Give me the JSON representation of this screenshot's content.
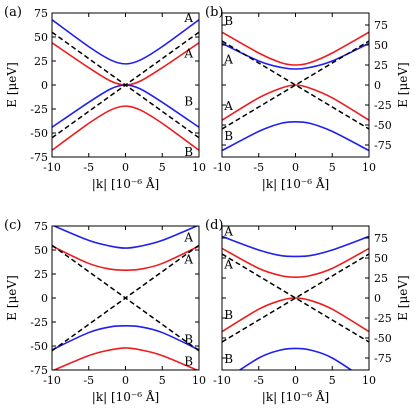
{
  "panel_labels": [
    "(a)",
    "(b)",
    "(c)",
    "(d)"
  ],
  "axis_labels": {
    "x": "|k| [10⁻⁶ Å]",
    "y": "E [μeV]"
  },
  "colors": {
    "blue": "#1f1ff0",
    "red": "#ee1c1c",
    "dashed": "#000000",
    "frame": "#000000"
  },
  "chart_data": [
    {
      "panel": "(a)",
      "type": "line",
      "xlim": [
        -10,
        10
      ],
      "ylim": [
        -75,
        75
      ],
      "xticks": [
        -10,
        -5,
        0,
        5,
        10
      ],
      "yticks": [
        -75,
        -50,
        -25,
        0,
        25,
        50,
        75
      ],
      "ytick_side": "left",
      "xlabel": "|k| [10⁻⁶ Å]",
      "ylabel": "E [μeV]",
      "series": [
        {
          "color": "blue",
          "style": "solid",
          "points": [
            [
              -10,
              68
            ],
            [
              -5,
              40
            ],
            [
              -2,
              26
            ],
            [
              0,
              22
            ],
            [
              2,
              26
            ],
            [
              5,
              40
            ],
            [
              10,
              68
            ]
          ]
        },
        {
          "color": "red",
          "style": "solid",
          "points": [
            [
              -10,
              44
            ],
            [
              -5,
              18
            ],
            [
              -2,
              4
            ],
            [
              0,
              0
            ],
            [
              2,
              4
            ],
            [
              5,
              18
            ],
            [
              10,
              44
            ]
          ]
        },
        {
          "color": "blue",
          "style": "solid",
          "points": [
            [
              -10,
              -44
            ],
            [
              -5,
              -18
            ],
            [
              -2,
              -4
            ],
            [
              0,
              0
            ],
            [
              2,
              -4
            ],
            [
              5,
              -18
            ],
            [
              10,
              -44
            ]
          ]
        },
        {
          "color": "red",
          "style": "solid",
          "points": [
            [
              -10,
              -68
            ],
            [
              -5,
              -40
            ],
            [
              -2,
              -26
            ],
            [
              0,
              -22
            ],
            [
              2,
              -26
            ],
            [
              5,
              -40
            ],
            [
              10,
              -68
            ]
          ]
        },
        {
          "color": "dashed",
          "style": "dashed",
          "points": [
            [
              -10,
              55
            ],
            [
              10,
              -55
            ]
          ]
        },
        {
          "color": "dashed",
          "style": "dashed",
          "points": [
            [
              -10,
              -55
            ],
            [
              10,
              55
            ]
          ]
        }
      ],
      "labels": [
        {
          "text": "A",
          "x": 8.6,
          "y": 70
        },
        {
          "text": "A",
          "x": 8.6,
          "y": 33
        },
        {
          "text": "B",
          "x": 8.6,
          "y": -17
        },
        {
          "text": "B",
          "x": 8.6,
          "y": -70
        }
      ]
    },
    {
      "panel": "(b)",
      "type": "line",
      "xlim": [
        -10,
        10
      ],
      "ylim": [
        -90,
        90
      ],
      "xticks": [
        -10,
        -5,
        0,
        5,
        10
      ],
      "yticks": [
        -75,
        -50,
        -25,
        0,
        25,
        50,
        75
      ],
      "ytick_side": "right",
      "xlabel": "|k| [10⁻⁶ Å]",
      "ylabel": "E [μeV]",
      "series": [
        {
          "color": "red",
          "style": "solid",
          "points": [
            [
              -10,
              66
            ],
            [
              -5,
              40
            ],
            [
              -2,
              28
            ],
            [
              0,
              25
            ],
            [
              2,
              28
            ],
            [
              5,
              40
            ],
            [
              10,
              66
            ]
          ]
        },
        {
          "color": "blue",
          "style": "solid",
          "points": [
            [
              -10,
              52
            ],
            [
              -5,
              30
            ],
            [
              -2,
              22
            ],
            [
              0,
              20
            ],
            [
              2,
              22
            ],
            [
              5,
              30
            ],
            [
              10,
              52
            ]
          ]
        },
        {
          "color": "red",
          "style": "solid",
          "points": [
            [
              -10,
              -44
            ],
            [
              -5,
              -16
            ],
            [
              -2,
              -4
            ],
            [
              0,
              0
            ],
            [
              2,
              -4
            ],
            [
              5,
              -16
            ],
            [
              10,
              -44
            ]
          ]
        },
        {
          "color": "blue",
          "style": "solid",
          "points": [
            [
              -10,
              -82
            ],
            [
              -5,
              -58
            ],
            [
              -2,
              -48
            ],
            [
              0,
              -46
            ],
            [
              2,
              -48
            ],
            [
              5,
              -58
            ],
            [
              10,
              -82
            ]
          ]
        },
        {
          "color": "dashed",
          "style": "dashed",
          "points": [
            [
              -10,
              55
            ],
            [
              10,
              -55
            ]
          ]
        },
        {
          "color": "dashed",
          "style": "dashed",
          "points": [
            [
              -10,
              -55
            ],
            [
              10,
              55
            ]
          ]
        }
      ],
      "labels": [
        {
          "text": "B",
          "x": -9.1,
          "y": 80
        },
        {
          "text": "A",
          "x": -9.1,
          "y": 32
        },
        {
          "text": "A",
          "x": -9.1,
          "y": -26
        },
        {
          "text": "B",
          "x": -9.1,
          "y": -64
        }
      ]
    },
    {
      "panel": "(c)",
      "type": "line",
      "xlim": [
        -10,
        10
      ],
      "ylim": [
        -75,
        75
      ],
      "xticks": [
        -10,
        -5,
        0,
        5,
        10
      ],
      "yticks": [
        -75,
        -50,
        -25,
        0,
        25,
        50,
        75
      ],
      "ytick_side": "left",
      "xlabel": "|k| [10⁻⁶ Å]",
      "ylabel": "E [μeV]",
      "series": [
        {
          "color": "blue",
          "style": "solid",
          "points": [
            [
              -10,
              76
            ],
            [
              -5,
              60
            ],
            [
              -2,
              54
            ],
            [
              0,
              52
            ],
            [
              2,
              54
            ],
            [
              5,
              60
            ],
            [
              10,
              76
            ]
          ]
        },
        {
          "color": "red",
          "style": "solid",
          "points": [
            [
              -10,
              54
            ],
            [
              -5,
              36
            ],
            [
              -2,
              30
            ],
            [
              0,
              29
            ],
            [
              2,
              30
            ],
            [
              5,
              36
            ],
            [
              10,
              54
            ]
          ]
        },
        {
          "color": "blue",
          "style": "solid",
          "points": [
            [
              -10,
              -54
            ],
            [
              -5,
              -36
            ],
            [
              -2,
              -30
            ],
            [
              0,
              -29
            ],
            [
              2,
              -30
            ],
            [
              5,
              -36
            ],
            [
              10,
              -54
            ]
          ]
        },
        {
          "color": "red",
          "style": "solid",
          "points": [
            [
              -10,
              -76
            ],
            [
              -5,
              -60
            ],
            [
              -2,
              -54
            ],
            [
              0,
              -52
            ],
            [
              2,
              -54
            ],
            [
              5,
              -60
            ],
            [
              10,
              -76
            ]
          ]
        },
        {
          "color": "dashed",
          "style": "dashed",
          "points": [
            [
              -10,
              55
            ],
            [
              10,
              -55
            ]
          ]
        },
        {
          "color": "dashed",
          "style": "dashed",
          "points": [
            [
              -10,
              -55
            ],
            [
              10,
              55
            ]
          ]
        }
      ],
      "labels": [
        {
          "text": "A",
          "x": 8.6,
          "y": 63
        },
        {
          "text": "A",
          "x": 8.6,
          "y": 40
        },
        {
          "text": "B",
          "x": 8.6,
          "y": -43
        },
        {
          "text": "B",
          "x": 8.6,
          "y": -66
        }
      ]
    },
    {
      "panel": "(d)",
      "type": "line",
      "xlim": [
        -10,
        10
      ],
      "ylim": [
        -90,
        90
      ],
      "xticks": [
        -10,
        -5,
        0,
        5,
        10
      ],
      "yticks": [
        -75,
        -50,
        -25,
        0,
        25,
        50,
        75
      ],
      "ytick_side": "right",
      "xlabel": "|k| [10⁻⁶ Å]",
      "ylabel": "E [μeV]",
      "series": [
        {
          "color": "blue",
          "style": "solid",
          "points": [
            [
              -10,
              77
            ],
            [
              -5,
              60
            ],
            [
              -2,
              53
            ],
            [
              0,
              52
            ],
            [
              2,
              53
            ],
            [
              5,
              60
            ],
            [
              10,
              77
            ]
          ]
        },
        {
          "color": "red",
          "style": "solid",
          "points": [
            [
              -10,
              62
            ],
            [
              -5,
              37
            ],
            [
              -2,
              28
            ],
            [
              0,
              26
            ],
            [
              2,
              28
            ],
            [
              5,
              37
            ],
            [
              10,
              62
            ]
          ]
        },
        {
          "color": "red",
          "style": "solid",
          "points": [
            [
              -10,
              -42
            ],
            [
              -5,
              -14
            ],
            [
              -2,
              -3
            ],
            [
              0,
              0
            ],
            [
              2,
              -3
            ],
            [
              5,
              -14
            ],
            [
              10,
              -42
            ]
          ]
        },
        {
          "color": "blue",
          "style": "solid",
          "points": [
            [
              -10,
              -105
            ],
            [
              -5,
              -75
            ],
            [
              -2,
              -65
            ],
            [
              0,
              -63
            ],
            [
              2,
              -65
            ],
            [
              5,
              -75
            ],
            [
              10,
              -105
            ]
          ]
        },
        {
          "color": "dashed",
          "style": "dashed",
          "points": [
            [
              -10,
              55
            ],
            [
              10,
              -55
            ]
          ]
        },
        {
          "color": "dashed",
          "style": "dashed",
          "points": [
            [
              -10,
              -55
            ],
            [
              10,
              55
            ]
          ]
        }
      ],
      "labels": [
        {
          "text": "A",
          "x": -9.1,
          "y": 83
        },
        {
          "text": "A",
          "x": -9.1,
          "y": 42
        },
        {
          "text": "B",
          "x": -9.1,
          "y": -21
        },
        {
          "text": "B",
          "x": -9.1,
          "y": -76
        }
      ]
    }
  ]
}
